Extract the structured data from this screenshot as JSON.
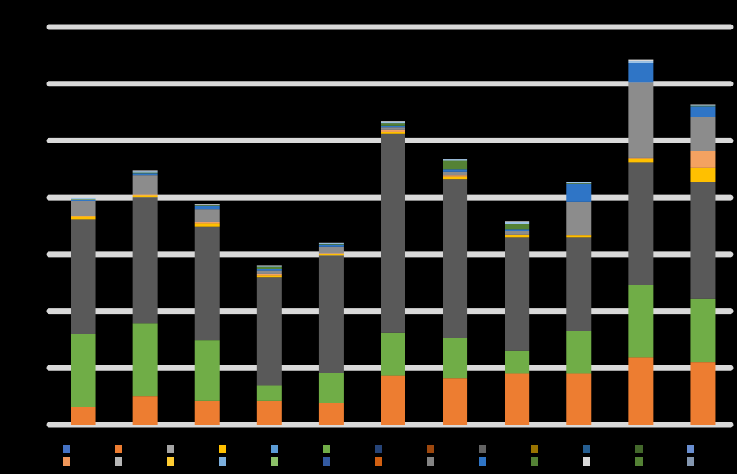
{
  "chart_data": {
    "type": "bar",
    "stacked": true,
    "title": "",
    "xlabel": "",
    "ylabel": "",
    "ylim": [
      0,
      7
    ],
    "grid": true,
    "legend_position": "bottom",
    "categories": [
      "",
      "",
      "",
      "",
      "",
      "",
      "",
      "",
      "",
      "",
      ""
    ],
    "bar_labels": [
      "",
      "",
      "",
      "",
      "",
      "",
      "",
      "",
      "",
      "",
      ""
    ],
    "series": [
      {
        "color": "#ED7D31",
        "values": [
          0.32,
          0.5,
          0.42,
          0.42,
          0.38,
          0.87,
          0.82,
          0.9,
          0.9,
          1.18,
          1.1
        ]
      },
      {
        "color": "#70AD47",
        "values": [
          1.28,
          1.28,
          1.07,
          0.27,
          0.53,
          0.75,
          0.7,
          0.4,
          0.75,
          1.28,
          1.12
        ]
      },
      {
        "color": "#595959",
        "values": [
          2.02,
          2.22,
          2.0,
          1.9,
          2.07,
          3.5,
          2.8,
          2.0,
          1.65,
          2.15,
          2.05
        ]
      },
      {
        "color": "#FFC000",
        "values": [
          0.04,
          0.04,
          0.06,
          0.04,
          0.03,
          0.04,
          0.05,
          0.04,
          0.03,
          0.08,
          0.25
        ]
      },
      {
        "color": "#F4A261",
        "values": [
          0.02,
          0.01,
          0.02,
          0.02,
          0.01,
          0.03,
          0.02,
          0.01,
          0.01,
          0.01,
          0.3
        ]
      },
      {
        "color": "#8C8C8C",
        "values": [
          0.26,
          0.34,
          0.22,
          0.06,
          0.12,
          0.05,
          0.06,
          0.06,
          0.58,
          1.32,
          0.6
        ]
      },
      {
        "color": "#2F75C6",
        "values": [
          0.02,
          0.04,
          0.06,
          0.03,
          0.03,
          0.02,
          0.05,
          0.03,
          0.32,
          0.34,
          0.18
        ]
      },
      {
        "color": "#548235",
        "values": [
          0.01,
          0.01,
          0.01,
          0.04,
          0.01,
          0.05,
          0.15,
          0.1,
          0.01,
          0.01,
          0.01
        ]
      },
      {
        "color": "#9DC3E6",
        "values": [
          0.02,
          0.02,
          0.02,
          0.02,
          0.02,
          0.02,
          0.02,
          0.03,
          0.02,
          0.03,
          0.02
        ]
      },
      {
        "color": "#D9D9D9",
        "values": [
          0.01,
          0.01,
          0.01,
          0.01,
          0.01,
          0.01,
          0.01,
          0.01,
          0.01,
          0.02,
          0.01
        ]
      }
    ],
    "legend": [
      {
        "color": "#4472C4"
      },
      {
        "color": "#ED7D31"
      },
      {
        "color": "#A5A5A5"
      },
      {
        "color": "#FFC000"
      },
      {
        "color": "#5B9BD5"
      },
      {
        "color": "#70AD47"
      },
      {
        "color": "#264478"
      },
      {
        "color": "#9E480E"
      },
      {
        "color": "#636363"
      },
      {
        "color": "#997300"
      },
      {
        "color": "#255E91"
      },
      {
        "color": "#43682B"
      },
      {
        "color": "#698ED0"
      },
      {
        "color": "#F1975A"
      },
      {
        "color": "#B7B7B7"
      },
      {
        "color": "#FFCD33"
      },
      {
        "color": "#7CAFDD"
      },
      {
        "color": "#8CC168"
      },
      {
        "color": "#335AA1"
      },
      {
        "color": "#D26012"
      },
      {
        "color": "#848484"
      },
      {
        "color": "#2F75C6"
      },
      {
        "color": "#548235"
      },
      {
        "color": "#D9D9D9"
      },
      {
        "color": "#548235"
      },
      {
        "color": "#8497B0"
      }
    ]
  }
}
